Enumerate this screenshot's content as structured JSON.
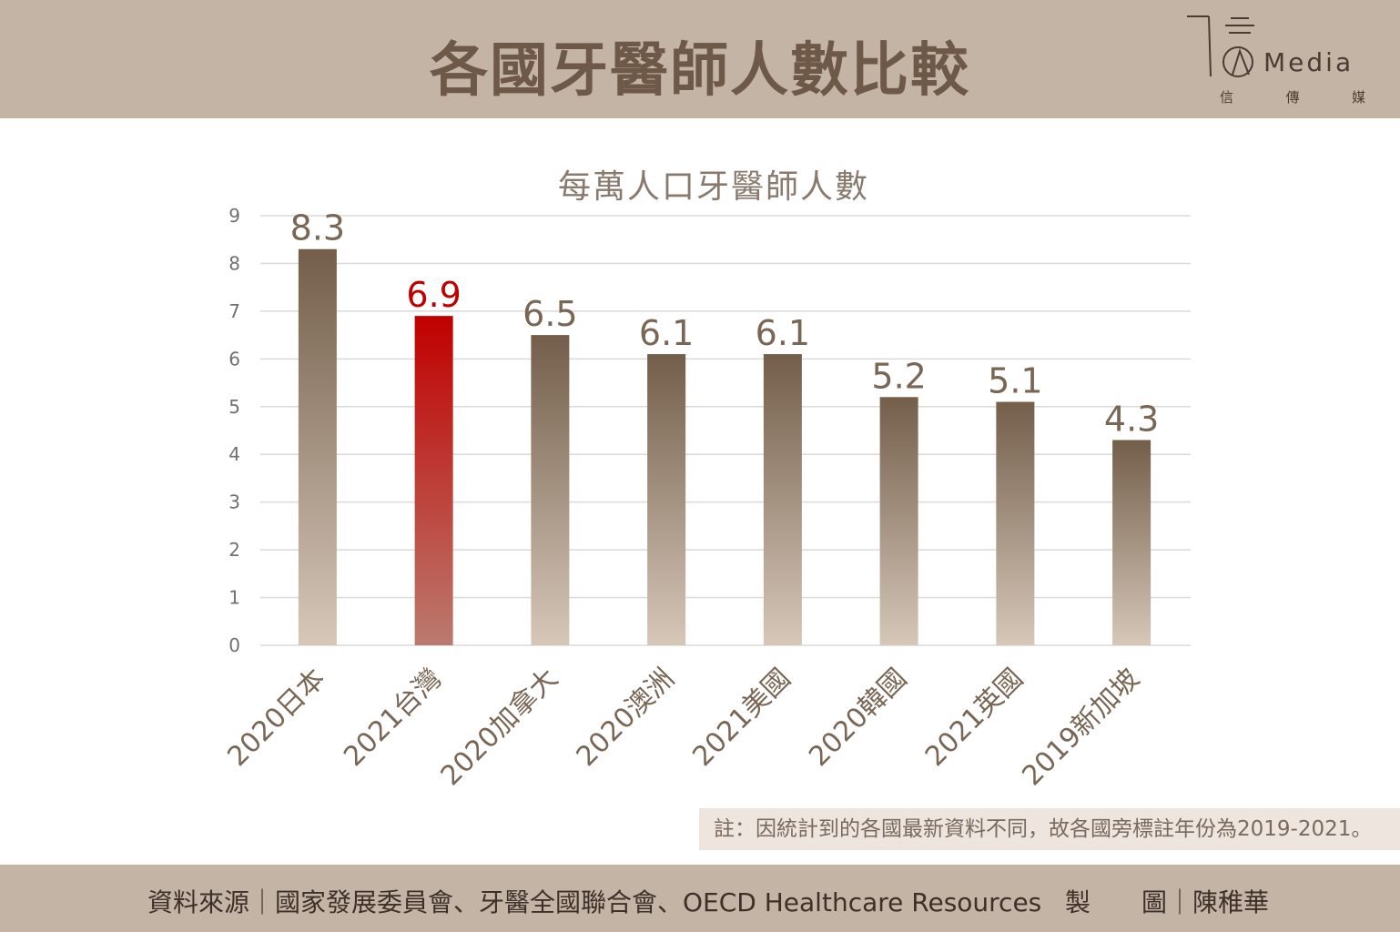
{
  "header": {
    "title": "各國牙醫師人數比較",
    "logo_text": "Media",
    "logo_sub": [
      "信",
      "傳",
      "媒"
    ]
  },
  "chart_data": {
    "type": "bar",
    "title": "每萬人口牙醫師人數",
    "categories": [
      "2020日本",
      "2021台灣",
      "2020加拿大",
      "2020澳洲",
      "2021美國",
      "2020韓國",
      "2021英國",
      "2019新加坡"
    ],
    "values": [
      8.3,
      6.9,
      6.5,
      6.1,
      6.1,
      5.2,
      5.1,
      4.3
    ],
    "data_labels": [
      "8.3",
      "6.9",
      "6.5",
      "6.1",
      "6.1",
      "5.2",
      "5.1",
      "4.3"
    ],
    "highlight_index": 1,
    "ylim": [
      0,
      9
    ],
    "yticks": [
      "0",
      "1",
      "2",
      "3",
      "4",
      "5",
      "6",
      "7",
      "8",
      "9"
    ],
    "grid": true,
    "legend": "none",
    "colors": {
      "bar_top": "#735e4a",
      "bar_bottom": "#d6c7b9",
      "highlight_top": "#c00000",
      "highlight_bottom": "#bb7a6e",
      "highlight_label": "#c00000",
      "label": "#7a6654",
      "grid": "#dadada",
      "tick": "#707070"
    }
  },
  "note": "註：因統計到的各國最新資料不同，故各國旁標註年份為2019-2021。",
  "footer": {
    "source": "資料來源｜國家發展委員會、牙醫全國聯合會、OECD Healthcare Resources",
    "made_label_1": "製",
    "made_label_2": "圖",
    "made_sep": "｜",
    "author": "陳稚華"
  },
  "colors": {
    "header_bg": "#c4b4a6",
    "title": "#6e5848",
    "note_bg": "#ede5de"
  }
}
